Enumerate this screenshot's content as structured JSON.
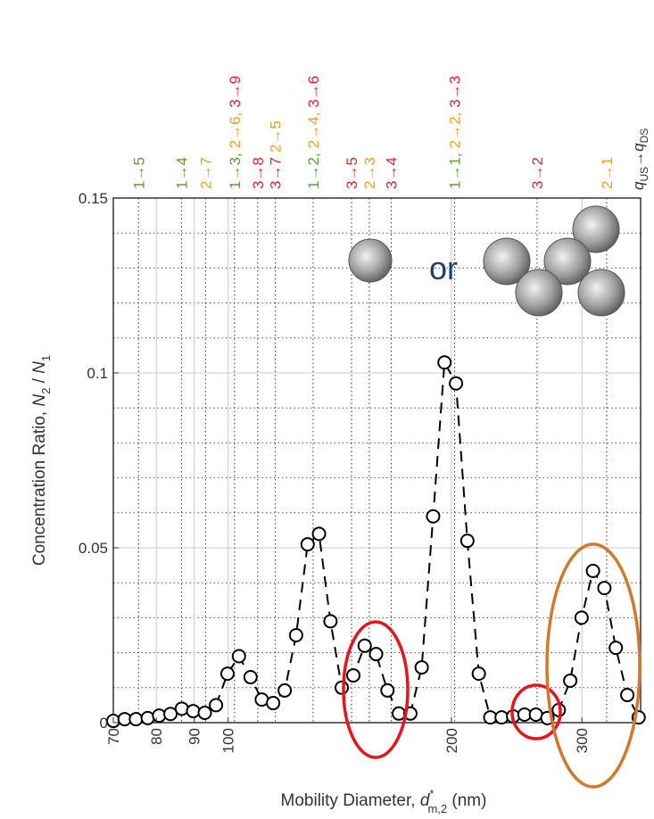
{
  "chart_data": {
    "type": "line",
    "xscale": "log",
    "xlim": [
      70,
      360
    ],
    "ylim": [
      0,
      0.15
    ],
    "xticks": [
      70,
      80,
      90,
      100,
      200,
      300
    ],
    "yticks": [
      0,
      0.05,
      0.1,
      0.15
    ],
    "minor_yticks": [
      0.01,
      0.02,
      0.03,
      0.04,
      0.06,
      0.07,
      0.08,
      0.09,
      0.11,
      0.12,
      0.13,
      0.14
    ],
    "grid": true,
    "xlabel": [
      "Mobility Diameter, ",
      "d",
      "*",
      "m,2",
      " (nm)"
    ],
    "ylabel": [
      "Concentration Ratio, ",
      "N",
      "2",
      " / ",
      "N",
      "1"
    ],
    "charge_label": [
      "q",
      "US",
      "→",
      "q",
      "DS"
    ],
    "inset_text": "or",
    "x": [
      70.0,
      72.5,
      75.1,
      77.9,
      80.7,
      83.6,
      86.6,
      89.7,
      93.0,
      96.3,
      99.8,
      103.4,
      107.2,
      111.0,
      115.0,
      119.2,
      123.5,
      128.0,
      132.6,
      137.4,
      142.3,
      147.5,
      152.8,
      158.3,
      164.0,
      169.9,
      176.1,
      182.4,
      189.0,
      195.8,
      202.9,
      210.2,
      217.8,
      225.7,
      233.8,
      242.3,
      251.0,
      260.1,
      269.5,
      279.2,
      289.3,
      299.7,
      310.5,
      321.7,
      333.3,
      345.4,
      357.8
    ],
    "series": [
      {
        "color": "#000000",
        "values": [
          0.0005,
          0.001,
          0.001,
          0.0013,
          0.002,
          0.0025,
          0.004,
          0.0033,
          0.0028,
          0.005,
          0.014,
          0.019,
          0.013,
          0.0066,
          0.0056,
          0.0092,
          0.025,
          0.051,
          0.054,
          0.029,
          0.01,
          0.0135,
          0.022,
          0.0196,
          0.0092,
          0.0026,
          0.0026,
          0.0158,
          0.059,
          0.103,
          0.097,
          0.052,
          0.014,
          0.0015,
          0.0015,
          0.0018,
          0.0023,
          0.0023,
          0.0013,
          0.0036,
          0.012,
          0.03,
          0.0434,
          0.0385,
          0.0214,
          0.0079,
          0.0015
        ]
      }
    ],
    "annotations": [
      {
        "x": 75.7,
        "labels": [
          {
            "text": "1→5",
            "color": "#5a9e3a"
          }
        ]
      },
      {
        "x": 86.5,
        "labels": [
          {
            "text": "1→4",
            "color": "#5a9e3a"
          }
        ]
      },
      {
        "x": 93.2,
        "labels": [
          {
            "text": "2→7",
            "color": "#f39c1f"
          }
        ]
      },
      {
        "x": 102,
        "labels": [
          {
            "text": "1→3,",
            "color": "#5a9e3a"
          },
          {
            "text": "2→6,",
            "color": "#f39c1f"
          },
          {
            "text": "3→9",
            "color": "#e6222b"
          }
        ]
      },
      {
        "x": 109.6,
        "labels": [
          {
            "text": "3→8",
            "color": "#e6222b"
          }
        ]
      },
      {
        "x": 115.8,
        "labels": [
          {
            "text": "3→7",
            "color": "#e6222b"
          },
          {
            "text": "2→5",
            "color": "#f39c1f"
          }
        ]
      },
      {
        "x": 130.2,
        "labels": [
          {
            "text": "1→2,",
            "color": "#5a9e3a"
          },
          {
            "text": "2→4,",
            "color": "#f39c1f"
          },
          {
            "text": "3→6",
            "color": "#e6222b"
          }
        ]
      },
      {
        "x": 146.7,
        "labels": [
          {
            "text": "3→5",
            "color": "#e6222b"
          }
        ]
      },
      {
        "x": 155,
        "labels": [
          {
            "text": "2→3",
            "color": "#f39c1f"
          }
        ]
      },
      {
        "x": 165.9,
        "labels": [
          {
            "text": "3→4",
            "color": "#e6222b"
          }
        ]
      },
      {
        "x": 202,
        "labels": [
          {
            "text": "1→1,",
            "color": "#5a9e3a"
          },
          {
            "text": "2→2,",
            "color": "#f39c1f"
          },
          {
            "text": "3→3",
            "color": "#e6222b"
          }
        ]
      },
      {
        "x": 261,
        "labels": [
          {
            "text": "3→2",
            "color": "#e6222b"
          }
        ]
      },
      {
        "x": 324,
        "labels": [
          {
            "text": "2→1",
            "color": "#f39c1f"
          }
        ]
      }
    ]
  }
}
